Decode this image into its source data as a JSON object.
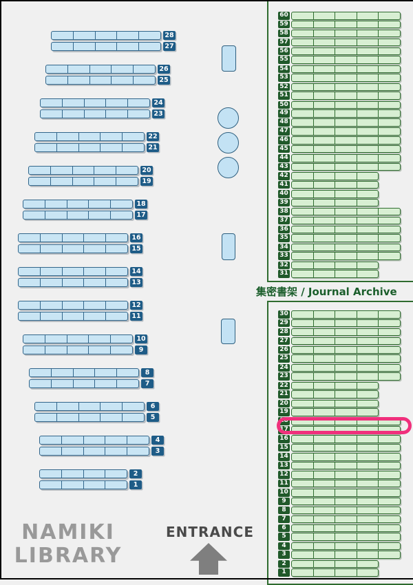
{
  "labels": {
    "library_name_line1": "NAMIKI",
    "library_name_line2": "LIBRARY",
    "entrance": "ENTRANCE",
    "archive": "集密書架 / Journal Archive"
  },
  "left_shelves": {
    "pairs": [
      [
        "28",
        "27"
      ],
      [
        "26",
        "25"
      ],
      [
        "24",
        "23"
      ],
      [
        "22",
        "21"
      ],
      [
        "20",
        "19"
      ],
      [
        "18",
        "17"
      ],
      [
        "16",
        "15"
      ],
      [
        "14",
        "13"
      ],
      [
        "12",
        "11"
      ],
      [
        "10",
        "9"
      ],
      [
        "8",
        "7"
      ],
      [
        "6",
        "5"
      ],
      [
        "4",
        "3"
      ],
      [
        "2",
        "1"
      ]
    ],
    "short_pairs": [
      "2,1"
    ]
  },
  "right_archive": {
    "top_section_rows": [
      "60",
      "59",
      "58",
      "57",
      "56",
      "55",
      "54",
      "53",
      "52",
      "51",
      "50",
      "49",
      "48",
      "47",
      "46",
      "45",
      "44",
      "43",
      "42",
      "41",
      "40",
      "39",
      "38",
      "37",
      "36",
      "35",
      "34",
      "33",
      "32",
      "31"
    ],
    "top_section_short_rows": [
      "42",
      "41",
      "40",
      "39",
      "32",
      "31"
    ],
    "bottom_section_rows": [
      "30",
      "29",
      "28",
      "27",
      "26",
      "25",
      "24",
      "23",
      "22",
      "21",
      "20",
      "19",
      "18",
      "17",
      "16",
      "15",
      "14",
      "13",
      "12",
      "11",
      "10",
      "9",
      "8",
      "7",
      "6",
      "5",
      "4",
      "3",
      "2",
      "1"
    ],
    "bottom_section_short_rows": [
      "22",
      "21",
      "20",
      "19",
      "2",
      "1"
    ],
    "highlighted_row": "17"
  },
  "colors": {
    "background": "#f0f0f0",
    "shelf_blue_fill": "#c9e5f4",
    "shelf_blue_border": "#31658a",
    "badge_blue": "#1e5c87",
    "shelf_green_fill": "#d8efd3",
    "shelf_green_border": "#2e6b2e",
    "badge_green": "#20592a",
    "panel_border": "#2e6b2e",
    "archive_label_text": "#1b5e2b",
    "highlight_pink": "#f0307c",
    "library_name_text": "#999999",
    "entrance_text": "#4a4a4a",
    "arrow_gray": "#7f7f7f"
  }
}
